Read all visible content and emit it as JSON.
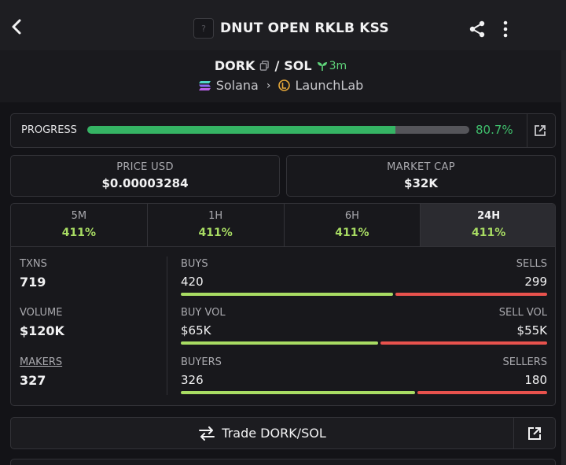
{
  "header": {
    "title": "DNUT OPEN RKLB KSS",
    "token_placeholder": "?"
  },
  "pair": {
    "base": "DORK",
    "separator": "/",
    "quote": "SOL",
    "age": "3m",
    "chain": "Solana",
    "launchpad": "LaunchLab"
  },
  "progress": {
    "label": "PROGRESS",
    "value_text": "80.7%",
    "fraction": 0.807
  },
  "price": {
    "label": "PRICE USD",
    "value": "$0.00003284"
  },
  "market_cap": {
    "label": "MARKET CAP",
    "value": "$32K"
  },
  "tabs": [
    {
      "name": "5M",
      "value": "411%"
    },
    {
      "name": "1H",
      "value": "411%"
    },
    {
      "name": "6H",
      "value": "411%"
    },
    {
      "name": "24H",
      "value": "411%",
      "active": true
    }
  ],
  "stats": {
    "txns": {
      "label": "TXNS",
      "value": "719"
    },
    "volume": {
      "label": "VOLUME",
      "value": "$120K"
    },
    "makers": {
      "label": "MAKERS",
      "value": "327"
    }
  },
  "rows": [
    {
      "left_label": "BUYS",
      "left_value": "420",
      "right_label": "SELLS",
      "right_value": "299",
      "green_fraction": 0.584
    },
    {
      "left_label": "BUY VOL",
      "left_value": "$65K",
      "right_label": "SELL VOL",
      "right_value": "$55K",
      "green_fraction": 0.542
    },
    {
      "left_label": "BUYERS",
      "left_value": "326",
      "right_label": "SELLERS",
      "right_value": "180",
      "green_fraction": 0.644
    }
  ],
  "trade": {
    "label": "Trade DORK/SOL"
  },
  "colors": {
    "accent_green": "#a8dc63",
    "progress_green": "#35b464",
    "sell_red": "#e8524d",
    "background": "#131317"
  }
}
